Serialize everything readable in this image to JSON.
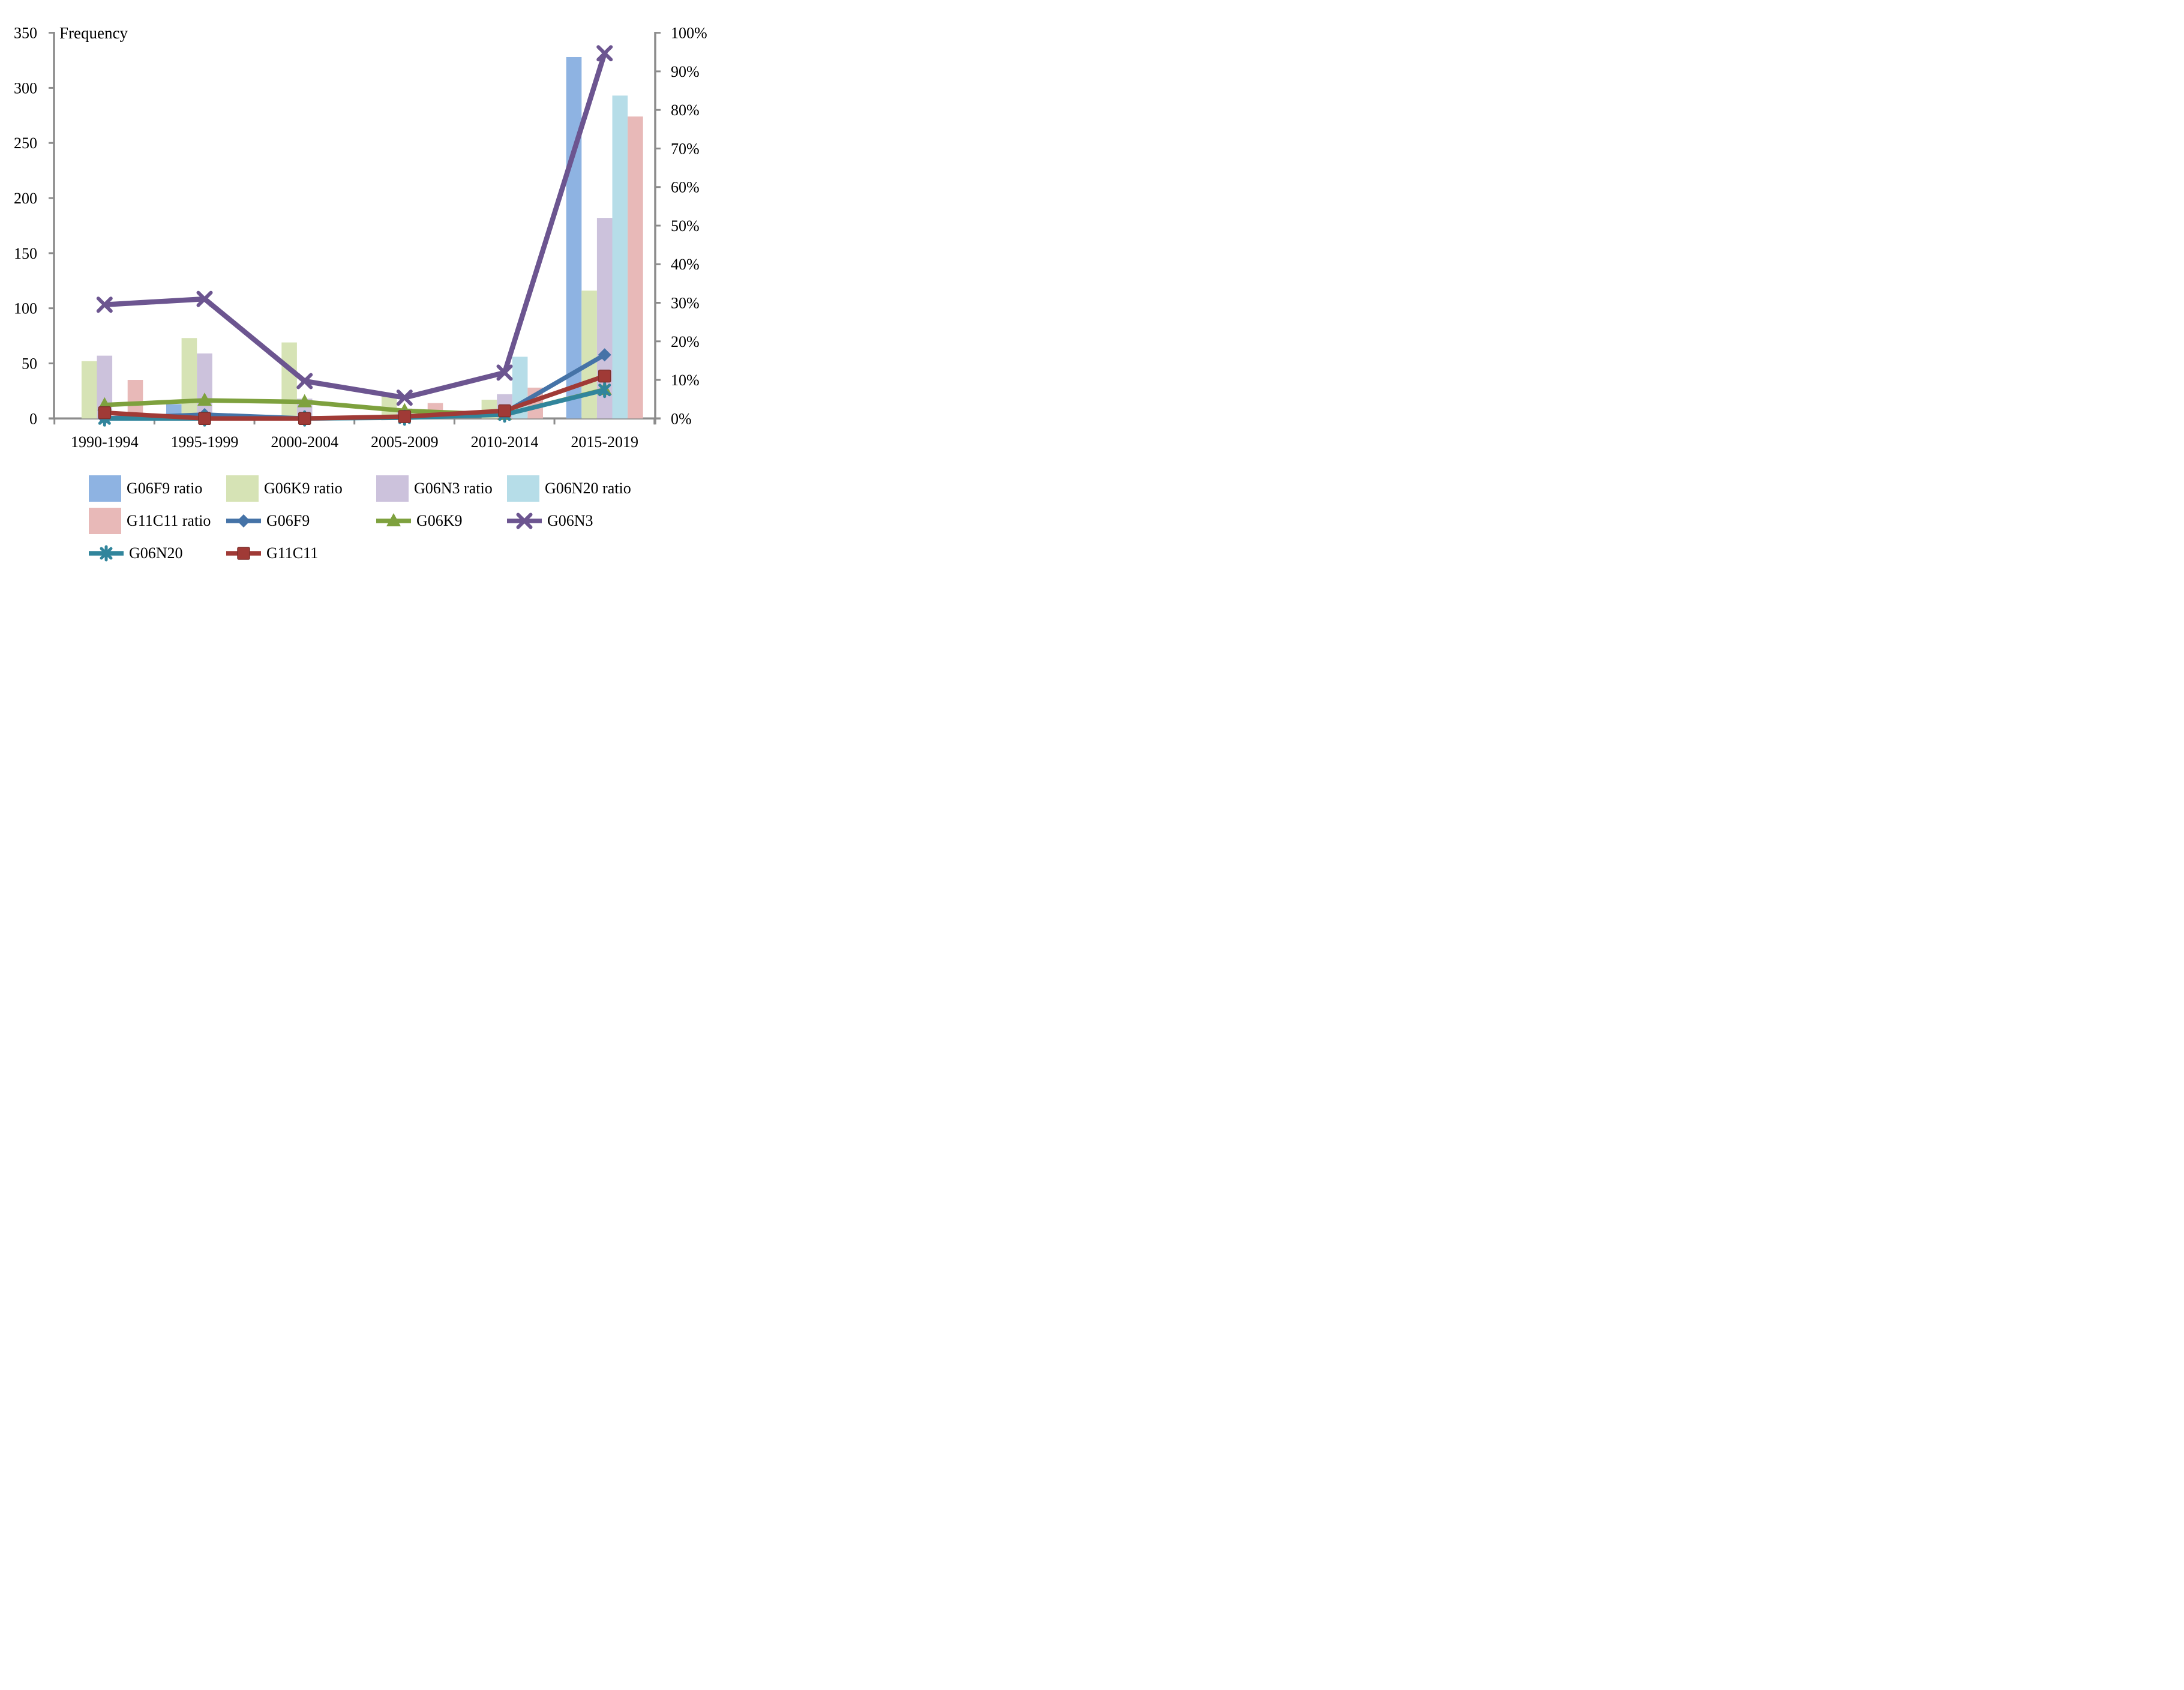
{
  "chart_data": {
    "type": "bar+line-combo",
    "title": "Frequency",
    "categories": [
      "1990-1994",
      "1995-1999",
      "2000-2004",
      "2005-2009",
      "2010-2014",
      "2015-2019"
    ],
    "left_axis": {
      "title": "Frequency",
      "min": 0,
      "max": 350,
      "step": 50,
      "tick_labels": [
        "0",
        "50",
        "100",
        "150",
        "200",
        "250",
        "300",
        "350"
      ]
    },
    "right_axis": {
      "min": "0%",
      "max": "100%",
      "step": "10%",
      "tick_labels": [
        "0%",
        "10%",
        "20%",
        "30%",
        "40%",
        "50%",
        "60%",
        "70%",
        "80%",
        "90%",
        "100%"
      ]
    },
    "bar_series": [
      {
        "name": "G06F9 ratio",
        "color": "#8EB3E2",
        "values": [
          0,
          13,
          0,
          0,
          0,
          328
        ]
      },
      {
        "name": "G06K9 ratio",
        "color": "#D6E3B5",
        "values": [
          52,
          73,
          69,
          21,
          17,
          116
        ]
      },
      {
        "name": "G06N3 ratio",
        "color": "#CCC2DC",
        "values": [
          57,
          59,
          18,
          9,
          22,
          182
        ]
      },
      {
        "name": "G06N20 ratio",
        "color": "#B6DDE8",
        "values": [
          0,
          0,
          0,
          0,
          56,
          293
        ]
      },
      {
        "name": "G11C11 ratio",
        "color": "#E8B9B8",
        "values": [
          35,
          0,
          0,
          14,
          28,
          274
        ]
      }
    ],
    "line_series": [
      {
        "name": "G06F9",
        "color": "#4573A7",
        "marker": "diamond",
        "values_pct": [
          0,
          1,
          0,
          0.3,
          1.5,
          16.5
        ]
      },
      {
        "name": "G06K9",
        "color": "#7EA13E",
        "marker": "triangle",
        "values_pct": [
          3.5,
          4.7,
          4.3,
          2,
          1,
          7.5
        ]
      },
      {
        "name": "G06N3",
        "color": "#6C5590",
        "marker": "x",
        "values_pct": [
          29.5,
          31,
          9.7,
          5.4,
          11.9,
          94.7
        ]
      },
      {
        "name": "G06N20",
        "color": "#31859C",
        "marker": "asterisk",
        "values_pct": [
          0,
          0,
          0,
          0.2,
          1,
          7.4
        ]
      },
      {
        "name": "G11C11",
        "color": "#A03A36",
        "marker": "square",
        "values_pct": [
          1.5,
          0,
          0,
          0.5,
          2,
          11
        ]
      }
    ],
    "legend": {
      "entries": [
        {
          "label": "G06F9 ratio",
          "type": "swatch",
          "color": "#8EB3E2"
        },
        {
          "label": "G06K9 ratio",
          "type": "swatch",
          "color": "#D6E3B5"
        },
        {
          "label": "G06N3 ratio",
          "type": "swatch",
          "color": "#CCC2DC"
        },
        {
          "label": "G06N20 ratio",
          "type": "swatch",
          "color": "#B6DDE8"
        },
        {
          "label": "G11C11 ratio",
          "type": "swatch",
          "color": "#E8B9B8"
        },
        {
          "label": "G06F9",
          "type": "marker",
          "marker": "diamond",
          "color": "#4573A7"
        },
        {
          "label": "G06K9",
          "type": "marker",
          "marker": "triangle",
          "color": "#7EA13E"
        },
        {
          "label": "G06N3",
          "type": "marker",
          "marker": "x",
          "color": "#6C5590"
        },
        {
          "label": "G06N20",
          "type": "marker",
          "marker": "asterisk",
          "color": "#31859C"
        },
        {
          "label": "G11C11",
          "type": "marker",
          "marker": "square",
          "color": "#A03A36"
        }
      ],
      "position": "bottom"
    },
    "grid": "off",
    "axis_color": "#8C8C8C"
  }
}
